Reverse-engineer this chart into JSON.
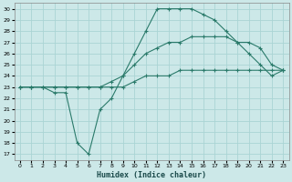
{
  "xlabel": "Humidex (Indice chaleur)",
  "bg_color": "#cce8e8",
  "grid_color": "#aad4d4",
  "line_color": "#2a7a6a",
  "xlim": [
    -0.5,
    23.5
  ],
  "ylim": [
    16.5,
    30.5
  ],
  "xticks": [
    0,
    1,
    2,
    3,
    4,
    5,
    6,
    7,
    8,
    9,
    10,
    11,
    12,
    13,
    14,
    15,
    16,
    17,
    18,
    19,
    20,
    21,
    22,
    23
  ],
  "yticks": [
    17,
    18,
    19,
    20,
    21,
    22,
    23,
    24,
    25,
    26,
    27,
    28,
    29,
    30
  ],
  "line1_x": [
    0,
    1,
    2,
    3,
    4,
    5,
    6,
    7,
    8,
    9,
    10,
    11,
    12,
    13,
    14,
    15,
    16,
    17,
    18,
    19,
    20,
    21,
    22,
    23
  ],
  "line1_y": [
    23.0,
    23.0,
    23.0,
    22.5,
    22.5,
    18.0,
    17.0,
    21.0,
    22.0,
    24.0,
    26.0,
    28.0,
    30.0,
    30.0,
    30.0,
    30.0,
    29.5,
    29.0,
    28.0,
    27.0,
    26.0,
    25.0,
    24.0,
    24.5
  ],
  "line2_x": [
    0,
    1,
    2,
    3,
    4,
    5,
    6,
    7,
    8,
    9,
    10,
    11,
    12,
    13,
    14,
    15,
    16,
    17,
    18,
    19,
    20,
    21,
    22,
    23
  ],
  "line2_y": [
    23.0,
    23.0,
    23.0,
    23.0,
    23.0,
    23.0,
    23.0,
    23.0,
    23.5,
    24.0,
    25.0,
    26.0,
    26.5,
    27.0,
    27.0,
    27.5,
    27.5,
    27.5,
    27.5,
    27.0,
    27.0,
    26.5,
    25.0,
    24.5
  ],
  "line3_x": [
    0,
    1,
    2,
    3,
    4,
    5,
    6,
    7,
    8,
    9,
    10,
    11,
    12,
    13,
    14,
    15,
    16,
    17,
    18,
    19,
    20,
    21,
    22,
    23
  ],
  "line3_y": [
    23.0,
    23.0,
    23.0,
    23.0,
    23.0,
    23.0,
    23.0,
    23.0,
    23.0,
    23.0,
    23.5,
    24.0,
    24.0,
    24.0,
    24.5,
    24.5,
    24.5,
    24.5,
    24.5,
    24.5,
    24.5,
    24.5,
    24.5,
    24.5
  ]
}
